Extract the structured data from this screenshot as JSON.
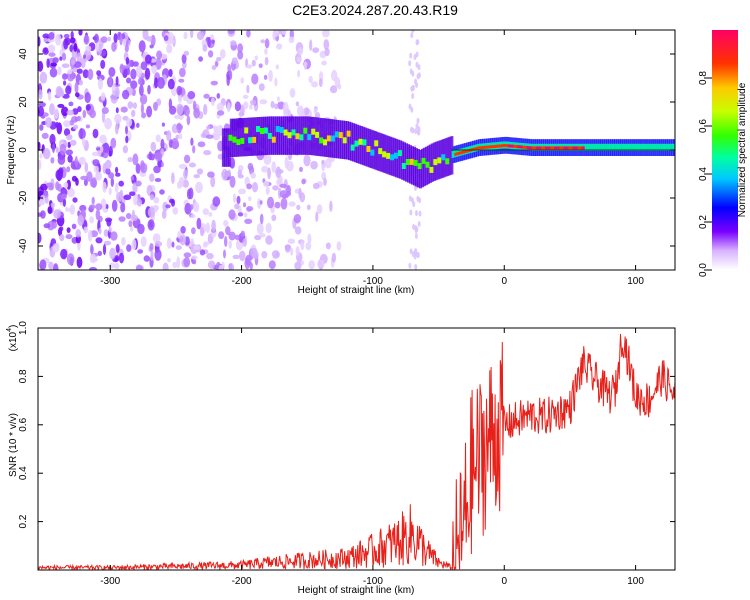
{
  "title": "C2E3.2024.287.20.43.R19",
  "chart_data": [
    {
      "type": "heatmap",
      "title": "C2E3.2024.287.20.43.R19",
      "xlabel": "Height of straight line (km)",
      "ylabel": "Frequency (Hz)",
      "xlim": [
        -355,
        130
      ],
      "ylim": [
        -50,
        50
      ],
      "xticks": [
        -300,
        -200,
        -100,
        0,
        100
      ],
      "yticks": [
        -40,
        -20,
        0,
        20,
        40
      ],
      "colorbar": {
        "label": "Normalized spectral amplitude",
        "range": [
          0.0,
          1.0
        ],
        "ticks": [
          "0.0",
          "0.2",
          "0.4",
          "0.6",
          "0.8"
        ],
        "colormap": [
          "#ffffff",
          "#d9b3ff",
          "#7a00ff",
          "#0000ff",
          "#00c8ff",
          "#00ffa0",
          "#32ff00",
          "#c8ff00",
          "#ffc800",
          "#ff3200",
          "#ff0064"
        ]
      },
      "ridge": [
        {
          "x": -210,
          "y": 5
        },
        {
          "x": -180,
          "y": 6
        },
        {
          "x": -150,
          "y": 6
        },
        {
          "x": -120,
          "y": 4
        },
        {
          "x": -100,
          "y": 0
        },
        {
          "x": -80,
          "y": -4
        },
        {
          "x": -65,
          "y": -8
        },
        {
          "x": -55,
          "y": -5
        },
        {
          "x": -40,
          "y": -2
        },
        {
          "x": -20,
          "y": 1
        },
        {
          "x": 0,
          "y": 2
        },
        {
          "x": 20,
          "y": 1
        },
        {
          "x": 60,
          "y": 1
        },
        {
          "x": 130,
          "y": 1
        }
      ]
    },
    {
      "type": "line",
      "xlabel": "Height of straight line (km)",
      "ylabel": "SNR (10 * v/v)",
      "yscale_label": "(x10",
      "yscale_exp": "4",
      "xlim": [
        -355,
        130
      ],
      "ylim": [
        0,
        1.0
      ],
      "xticks": [
        -300,
        -200,
        -100,
        0,
        100
      ],
      "yticks": [
        "0.2",
        "0.4",
        "0.6",
        "0.8",
        "1.0"
      ],
      "color": "#e8201a",
      "series": [
        {
          "x": [
            -355,
            -300,
            -250,
            -200,
            -180,
            -150,
            -120,
            -100,
            -90,
            -80,
            -70,
            -60,
            -50,
            -40,
            -35,
            -30,
            -25,
            -20,
            -15,
            -10,
            -5,
            0,
            10,
            20,
            30,
            40,
            50,
            60,
            70,
            80,
            85,
            90,
            100,
            110,
            120,
            130
          ],
          "y": [
            0.01,
            0.01,
            0.015,
            0.02,
            0.03,
            0.04,
            0.05,
            0.08,
            0.1,
            0.12,
            0.15,
            0.08,
            0.03,
            0.01,
            0.05,
            0.2,
            0.4,
            0.45,
            0.5,
            0.55,
            0.58,
            0.6,
            0.62,
            0.64,
            0.63,
            0.65,
            0.67,
            0.85,
            0.78,
            0.72,
            0.75,
            0.98,
            0.72,
            0.7,
            0.8,
            0.72
          ]
        }
      ]
    }
  ]
}
